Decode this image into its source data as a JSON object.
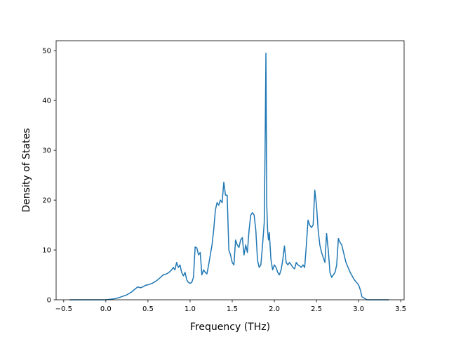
{
  "chart_data": {
    "type": "line",
    "title": "",
    "xlabel": "Frequency (THz)",
    "ylabel": "Density of States",
    "xlim": [
      -0.59,
      3.54
    ],
    "ylim": [
      0,
      52
    ],
    "xticks": [
      -0.5,
      0.0,
      0.5,
      1.0,
      1.5,
      2.0,
      2.5,
      3.0,
      3.5
    ],
    "xtick_labels": [
      "−0.5",
      "0.0",
      "0.5",
      "1.0",
      "1.5",
      "2.0",
      "2.5",
      "3.0",
      "3.5"
    ],
    "yticks": [
      0,
      10,
      20,
      30,
      40,
      50
    ],
    "ytick_labels": [
      "0",
      "10",
      "20",
      "30",
      "40",
      "50"
    ],
    "grid": false,
    "legend": false,
    "line_color": "#1f77b4",
    "series": [
      {
        "x": [
          -0.43,
          -0.2,
          0.0,
          0.1,
          0.15,
          0.2,
          0.25,
          0.3,
          0.35,
          0.38,
          0.41,
          0.44,
          0.47,
          0.5,
          0.55,
          0.6,
          0.65,
          0.68,
          0.72,
          0.75,
          0.78,
          0.8,
          0.82,
          0.84,
          0.86,
          0.88,
          0.9,
          0.92,
          0.94,
          0.96,
          0.98,
          1.0,
          1.02,
          1.04,
          1.06,
          1.08,
          1.1,
          1.12,
          1.14,
          1.16,
          1.18,
          1.2,
          1.22,
          1.24,
          1.26,
          1.28,
          1.3,
          1.32,
          1.34,
          1.36,
          1.38,
          1.4,
          1.42,
          1.44,
          1.46,
          1.48,
          1.5,
          1.52,
          1.54,
          1.56,
          1.58,
          1.6,
          1.62,
          1.64,
          1.66,
          1.68,
          1.7,
          1.72,
          1.74,
          1.76,
          1.78,
          1.8,
          1.82,
          1.84,
          1.86,
          1.88,
          1.89,
          1.9,
          1.91,
          1.92,
          1.93,
          1.94,
          1.96,
          1.98,
          2.0,
          2.02,
          2.04,
          2.06,
          2.08,
          2.1,
          2.12,
          2.14,
          2.16,
          2.18,
          2.2,
          2.22,
          2.24,
          2.26,
          2.28,
          2.3,
          2.32,
          2.34,
          2.36,
          2.38,
          2.4,
          2.42,
          2.44,
          2.46,
          2.48,
          2.5,
          2.52,
          2.54,
          2.56,
          2.58,
          2.6,
          2.62,
          2.64,
          2.66,
          2.68,
          2.7,
          2.72,
          2.74,
          2.76,
          2.78,
          2.8,
          2.85,
          2.9,
          2.95,
          3.0,
          3.02,
          3.04,
          3.1,
          3.36
        ],
        "y": [
          0,
          0,
          0,
          0.2,
          0.4,
          0.7,
          1.0,
          1.5,
          2.2,
          2.6,
          2.4,
          2.6,
          2.9,
          3.0,
          3.3,
          3.8,
          4.5,
          5.0,
          5.2,
          5.5,
          6.0,
          6.5,
          6.0,
          7.5,
          6.5,
          7.0,
          5.5,
          4.8,
          5.5,
          4.0,
          3.5,
          3.3,
          3.5,
          4.5,
          10.6,
          10.4,
          9.0,
          9.5,
          5.0,
          6.0,
          5.5,
          5.2,
          7.0,
          9.0,
          11.0,
          14.0,
          18.0,
          19.5,
          19.0,
          20.0,
          19.5,
          23.6,
          21.0,
          21.0,
          10.0,
          9.0,
          7.5,
          7.0,
          12.0,
          11.0,
          10.5,
          12.0,
          12.5,
          9.0,
          11.0,
          9.5,
          14.0,
          17.0,
          17.5,
          17.0,
          14.0,
          8.0,
          6.5,
          7.0,
          11.0,
          15.5,
          30.0,
          49.5,
          19.0,
          14.0,
          12.0,
          13.5,
          8.0,
          6.0,
          7.0,
          6.5,
          5.5,
          5.0,
          6.0,
          8.0,
          10.8,
          7.5,
          7.0,
          7.5,
          7.0,
          6.5,
          6.2,
          7.5,
          7.0,
          6.8,
          6.5,
          7.0,
          6.5,
          11.0,
          16.0,
          15.0,
          14.5,
          15.0,
          22.0,
          19.0,
          14.0,
          11.0,
          9.5,
          8.5,
          7.5,
          13.3,
          10.0,
          5.5,
          4.5,
          5.0,
          5.5,
          7.0,
          12.3,
          11.5,
          11.0,
          7.5,
          5.5,
          4.0,
          3.0,
          2.0,
          0.6,
          0,
          0
        ]
      }
    ]
  }
}
